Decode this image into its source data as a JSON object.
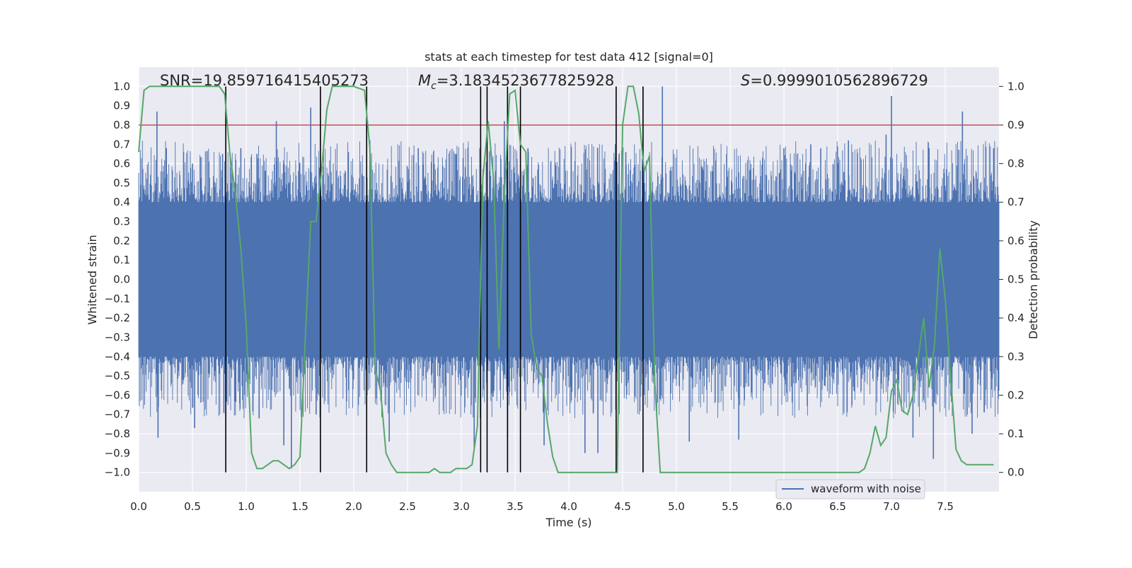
{
  "chart_data": {
    "type": "line",
    "title": "stats at each timestep for test data 412 [signal=0]",
    "xlabel": "Time (s)",
    "ylabel_left": "Whitened strain",
    "ylabel_right": "Detection probability",
    "xlim": [
      0,
      8
    ],
    "ylim_left": [
      -1.1,
      1.1
    ],
    "ylim_right": [
      -0.05,
      1.05
    ],
    "x_ticks": [
      "0.0",
      "0.5",
      "1.0",
      "1.5",
      "2.0",
      "2.5",
      "3.0",
      "3.5",
      "4.0",
      "4.5",
      "5.0",
      "5.5",
      "6.0",
      "6.5",
      "7.0",
      "7.5"
    ],
    "y_ticks_left": [
      "1.0",
      "0.9",
      "0.8",
      "0.7",
      "0.6",
      "0.5",
      "0.4",
      "0.3",
      "0.2",
      "0.1",
      "0.0",
      "-0.1",
      "-0.2",
      "-0.3",
      "-0.4",
      "-0.5",
      "-0.6",
      "-0.7",
      "-0.8",
      "-0.9",
      "-1.0"
    ],
    "y_ticks_right": [
      "1.0",
      "0.9",
      "0.8",
      "0.7",
      "0.6",
      "0.5",
      "0.4",
      "0.3",
      "0.2",
      "0.1",
      "0.0"
    ],
    "grid": true,
    "legend_position": "bottom-right",
    "annotations": {
      "snr": "SNR=19.859716415405273",
      "mc_symbol": "M",
      "mc_sub": "c",
      "mc_value": "=3.1834523677825928",
      "s_symbol": "S",
      "s_value": "=0.9999010562896729"
    },
    "series": [
      {
        "name": "waveform with noise",
        "axis": "left",
        "color": "#4c72b0",
        "style": "dense noise band",
        "core_band": [
          -0.4,
          0.4
        ],
        "spikes": [
          {
            "x": 0.17,
            "y": 0.87
          },
          {
            "x": 0.18,
            "y": -0.82
          },
          {
            "x": 0.5,
            "y": 0.6
          },
          {
            "x": 0.52,
            "y": -0.77
          },
          {
            "x": 0.78,
            "y": 0.65
          },
          {
            "x": 0.81,
            "y": -0.63
          },
          {
            "x": 0.95,
            "y": 0.68
          },
          {
            "x": 0.94,
            "y": -0.64
          },
          {
            "x": 1.1,
            "y": 0.65
          },
          {
            "x": 1.12,
            "y": -0.72
          },
          {
            "x": 1.28,
            "y": 0.82
          },
          {
            "x": 1.35,
            "y": -0.86
          },
          {
            "x": 1.42,
            "y": -0.98
          },
          {
            "x": 1.6,
            "y": 0.89
          },
          {
            "x": 1.65,
            "y": -0.7
          },
          {
            "x": 1.95,
            "y": 0.66
          },
          {
            "x": 2.15,
            "y": 0.72
          },
          {
            "x": 2.33,
            "y": -0.84
          },
          {
            "x": 2.6,
            "y": 0.68
          },
          {
            "x": 2.95,
            "y": 0.65
          },
          {
            "x": 3.12,
            "y": -0.88
          },
          {
            "x": 3.4,
            "y": 0.82
          },
          {
            "x": 3.43,
            "y": -0.82
          },
          {
            "x": 3.62,
            "y": 0.68
          },
          {
            "x": 3.77,
            "y": -0.86
          },
          {
            "x": 4.15,
            "y": -0.9
          },
          {
            "x": 4.27,
            "y": -0.9
          },
          {
            "x": 4.53,
            "y": 0.66
          },
          {
            "x": 4.87,
            "y": 1.0
          },
          {
            "x": 4.85,
            "y": -0.62
          },
          {
            "x": 5.12,
            "y": -0.84
          },
          {
            "x": 5.58,
            "y": -0.83
          },
          {
            "x": 6.0,
            "y": 0.68
          },
          {
            "x": 6.25,
            "y": 0.7
          },
          {
            "x": 6.6,
            "y": 0.72
          },
          {
            "x": 6.95,
            "y": 0.75
          },
          {
            "x": 7.0,
            "y": 0.95
          },
          {
            "x": 7.2,
            "y": -0.82
          },
          {
            "x": 7.35,
            "y": 0.68
          },
          {
            "x": 7.39,
            "y": -0.93
          },
          {
            "x": 7.66,
            "y": 0.87
          },
          {
            "x": 7.75,
            "y": -0.8
          },
          {
            "x": 7.95,
            "y": 0.68
          }
        ]
      },
      {
        "name": "",
        "axis": "right",
        "color": "#55a868",
        "x": [
          0.0,
          0.05,
          0.1,
          0.15,
          0.2,
          0.3,
          0.4,
          0.5,
          0.6,
          0.7,
          0.75,
          0.8,
          0.85,
          0.9,
          0.95,
          1.0,
          1.05,
          1.1,
          1.15,
          1.2,
          1.25,
          1.3,
          1.35,
          1.4,
          1.45,
          1.5,
          1.55,
          1.6,
          1.65,
          1.7,
          1.75,
          1.8,
          1.85,
          1.9,
          2.0,
          2.1,
          2.15,
          2.2,
          2.25,
          2.3,
          2.35,
          2.4,
          2.5,
          2.6,
          2.7,
          2.75,
          2.8,
          2.85,
          2.9,
          2.95,
          3.0,
          3.05,
          3.1,
          3.15,
          3.2,
          3.25,
          3.3,
          3.35,
          3.4,
          3.45,
          3.5,
          3.55,
          3.6,
          3.65,
          3.7,
          3.75,
          3.8,
          3.85,
          3.9,
          3.95,
          4.0,
          4.1,
          4.2,
          4.3,
          4.4,
          4.45,
          4.5,
          4.55,
          4.6,
          4.65,
          4.7,
          4.75,
          4.8,
          4.85,
          4.9,
          4.95,
          5.0,
          5.1,
          5.2,
          5.3,
          5.4,
          5.5,
          5.55,
          5.6,
          5.65,
          5.7,
          5.8,
          5.9,
          6.0,
          6.1,
          6.2,
          6.3,
          6.4,
          6.5,
          6.6,
          6.7,
          6.75,
          6.8,
          6.85,
          6.9,
          6.95,
          7.0,
          7.05,
          7.1,
          7.15,
          7.2,
          7.25,
          7.3,
          7.35,
          7.4,
          7.45,
          7.5,
          7.55,
          7.6,
          7.65,
          7.7,
          7.75,
          7.8,
          7.85,
          7.9,
          7.95
        ],
        "values": [
          0.83,
          0.99,
          1.0,
          1.0,
          1.0,
          1.0,
          1.0,
          1.0,
          1.0,
          1.0,
          1.0,
          0.98,
          0.82,
          0.72,
          0.58,
          0.38,
          0.05,
          0.01,
          0.01,
          0.02,
          0.03,
          0.03,
          0.02,
          0.01,
          0.02,
          0.04,
          0.35,
          0.65,
          0.65,
          0.78,
          0.94,
          1.0,
          1.0,
          1.0,
          1.0,
          0.99,
          0.84,
          0.27,
          0.21,
          0.05,
          0.02,
          0.0,
          0.0,
          0.0,
          0.0,
          0.01,
          0.0,
          0.0,
          0.0,
          0.01,
          0.01,
          0.01,
          0.02,
          0.12,
          0.76,
          0.91,
          0.76,
          0.32,
          0.72,
          0.98,
          0.99,
          0.85,
          0.83,
          0.36,
          0.27,
          0.25,
          0.13,
          0.04,
          0.0,
          0.0,
          0.0,
          0.0,
          0.0,
          0.0,
          0.0,
          0.0,
          0.9,
          1.0,
          1.0,
          0.93,
          0.78,
          0.82,
          0.23,
          0.0,
          0.0,
          0.0,
          0.0,
          0.0,
          0.0,
          0.0,
          0.0,
          0.0,
          0.0,
          0.0,
          0.0,
          0.0,
          0.0,
          0.0,
          0.0,
          0.0,
          0.0,
          0.0,
          0.0,
          0.0,
          0.0,
          0.0,
          0.01,
          0.05,
          0.12,
          0.07,
          0.09,
          0.21,
          0.24,
          0.16,
          0.15,
          0.2,
          0.3,
          0.4,
          0.22,
          0.33,
          0.58,
          0.45,
          0.25,
          0.06,
          0.03,
          0.02,
          0.02,
          0.02,
          0.02,
          0.02,
          0.02
        ]
      }
    ],
    "horizontal_line": {
      "axis": "left",
      "y": 0.8,
      "color": "#c44e52"
    },
    "vertical_lines": {
      "color": "#000000",
      "x": [
        0.81,
        1.69,
        2.12,
        3.18,
        3.24,
        3.43,
        3.55,
        4.44,
        4.69
      ],
      "y_range": [
        -1.0,
        1.0
      ]
    }
  }
}
